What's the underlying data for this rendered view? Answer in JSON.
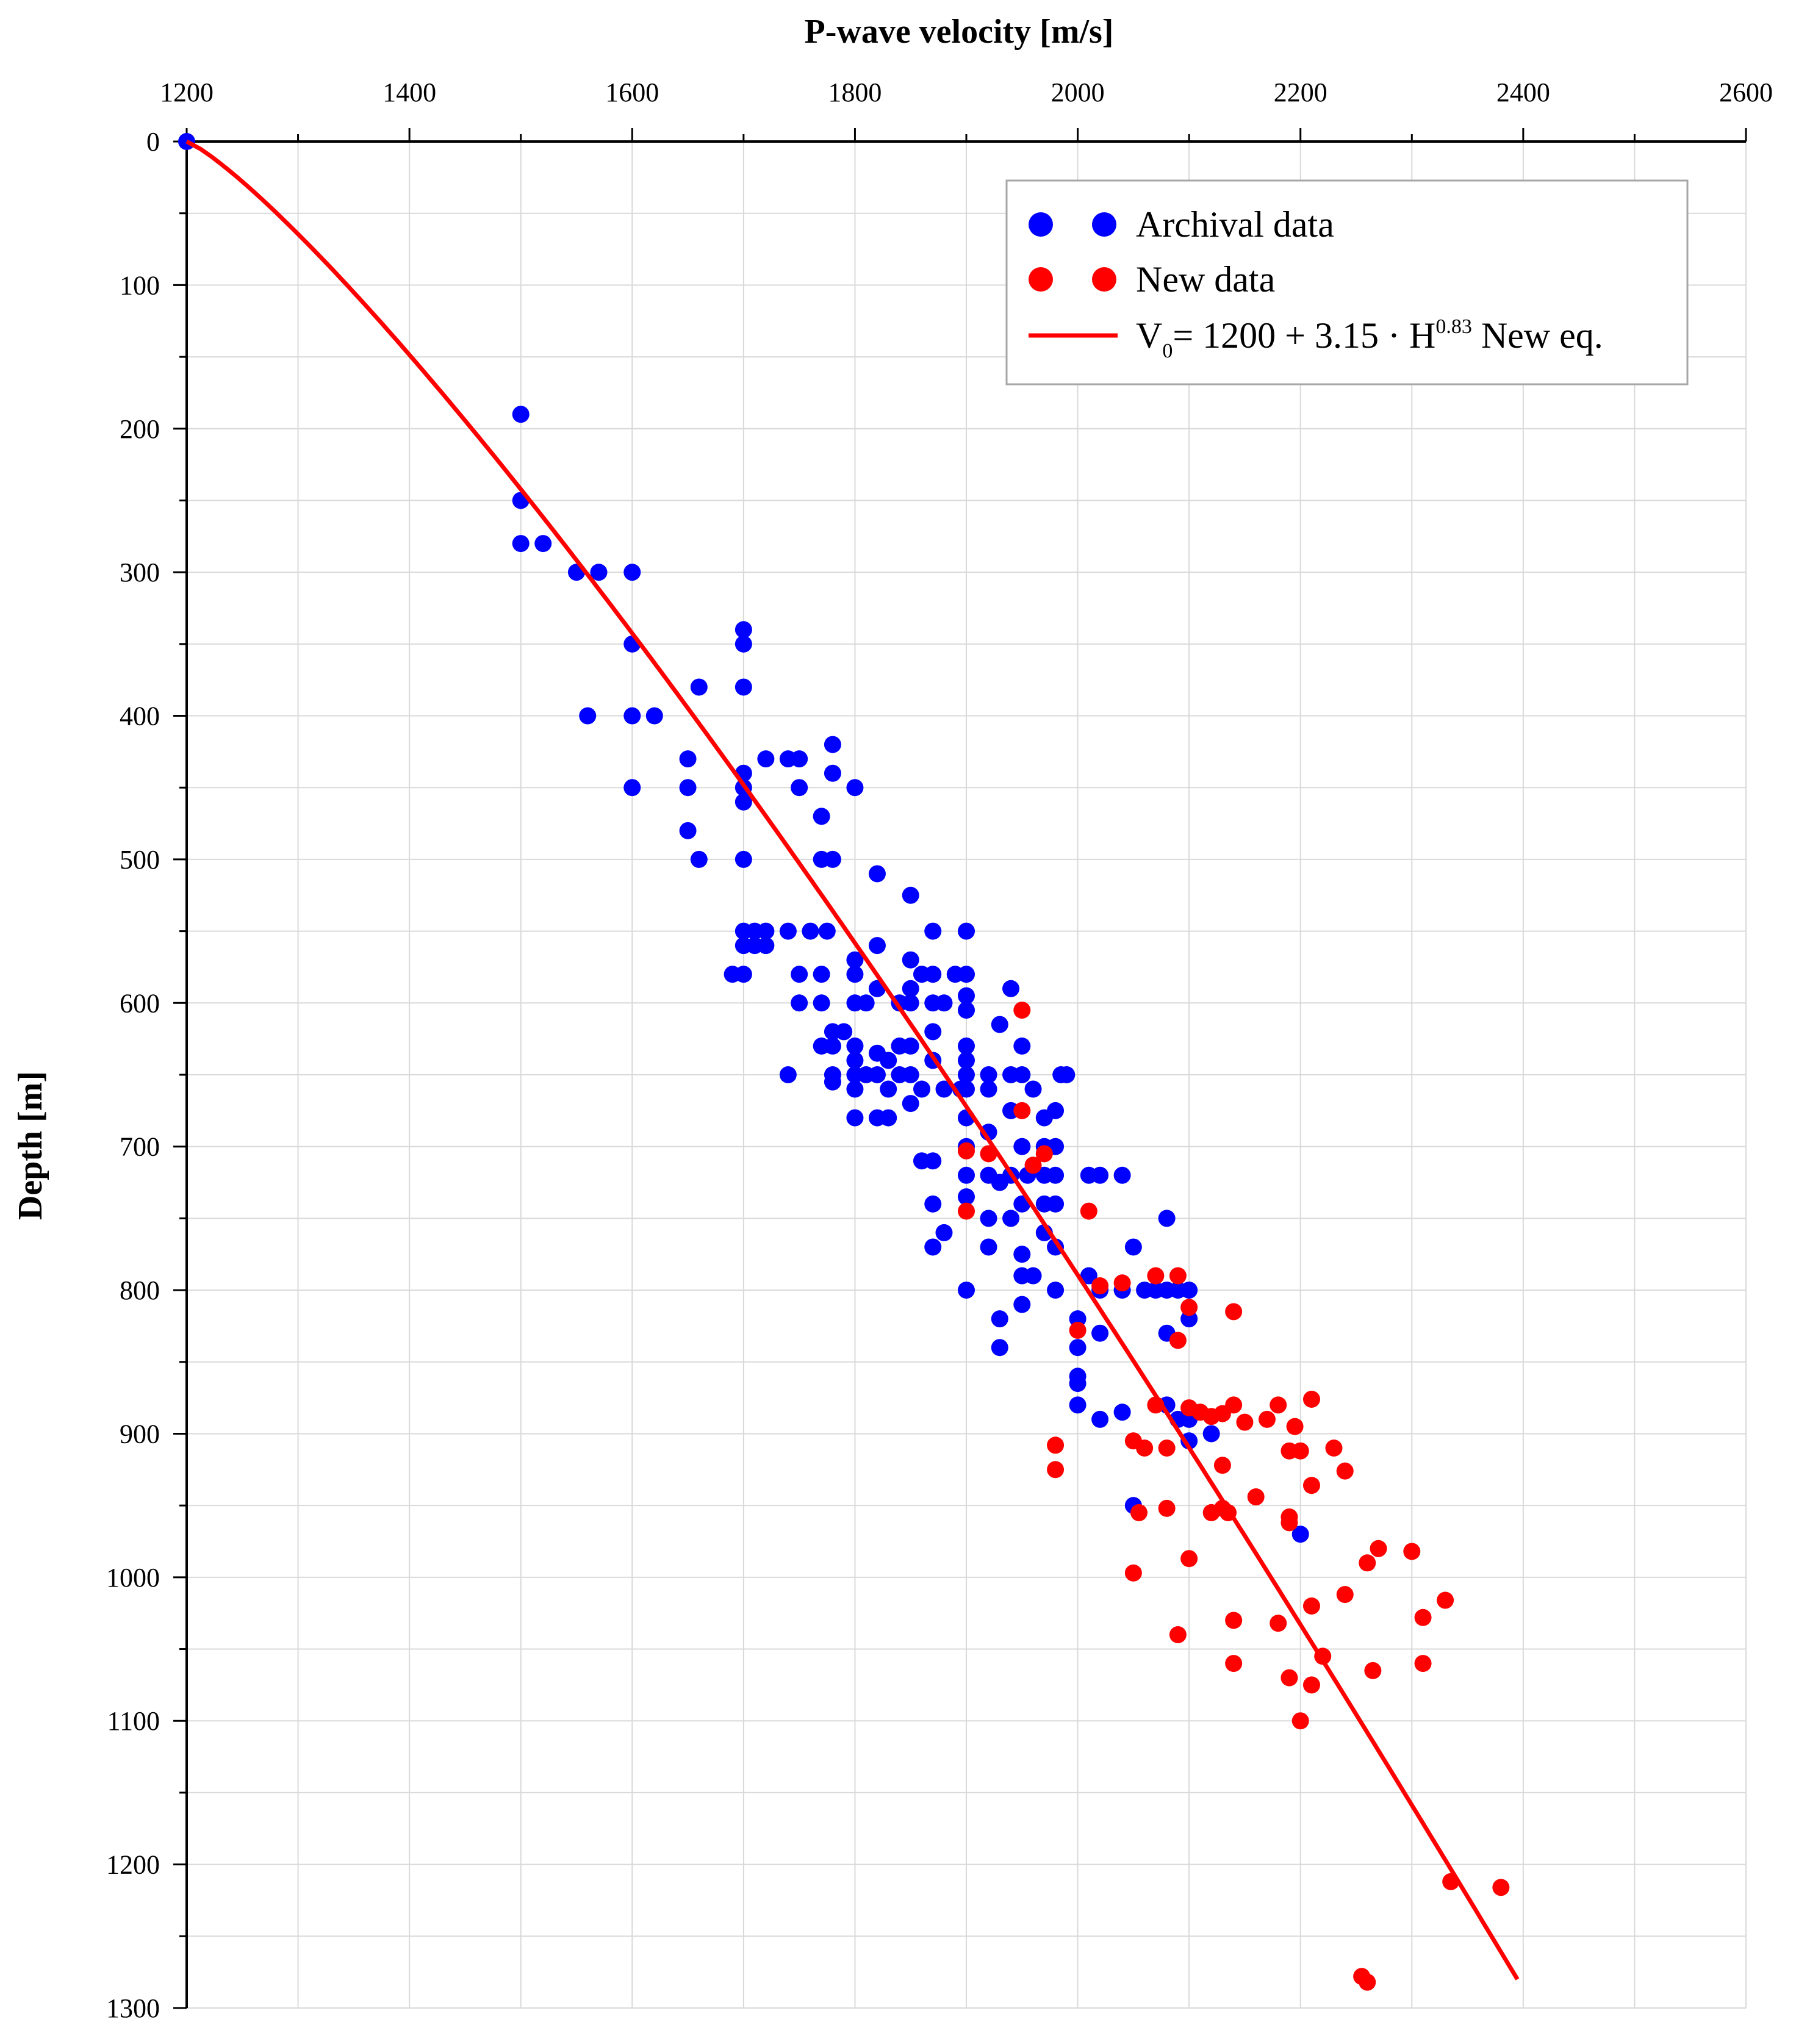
{
  "chart_data": {
    "type": "scatter",
    "title": "P-wave velocity [m/s]",
    "xlabel": "P-wave velocity [m/s]",
    "ylabel": "Depth [m]",
    "xlim": [
      1200,
      2600
    ],
    "ylim": [
      0,
      1300
    ],
    "x_axis_position": "top",
    "y_axis_inverted": true,
    "grid": true,
    "legend_position": "top-right",
    "xticks": [
      1200,
      1400,
      1600,
      1800,
      2000,
      2200,
      2400,
      2600
    ],
    "yticks": [
      0,
      100,
      200,
      300,
      400,
      500,
      600,
      700,
      800,
      900,
      1000,
      1100,
      1200,
      1300
    ],
    "series": [
      {
        "name": "Archival data",
        "kind": "scatter",
        "color": "#0000ff",
        "points": [
          [
            1200,
            0
          ],
          [
            1500,
            190
          ],
          [
            1500,
            250
          ],
          [
            1500,
            280
          ],
          [
            1520,
            280
          ],
          [
            1550,
            300
          ],
          [
            1570,
            300
          ],
          [
            1600,
            300
          ],
          [
            1600,
            350
          ],
          [
            1560,
            400
          ],
          [
            1600,
            400
          ],
          [
            1620,
            400
          ],
          [
            1660,
            380
          ],
          [
            1700,
            340
          ],
          [
            1700,
            350
          ],
          [
            1700,
            380
          ],
          [
            1650,
            430
          ],
          [
            1650,
            450
          ],
          [
            1600,
            450
          ],
          [
            1650,
            480
          ],
          [
            1660,
            500
          ],
          [
            1700,
            440
          ],
          [
            1700,
            450
          ],
          [
            1700,
            460
          ],
          [
            1720,
            430
          ],
          [
            1740,
            430
          ],
          [
            1750,
            430
          ],
          [
            1750,
            450
          ],
          [
            1780,
            420
          ],
          [
            1780,
            440
          ],
          [
            1800,
            450
          ],
          [
            1770,
            470
          ],
          [
            1700,
            500
          ],
          [
            1770,
            500
          ],
          [
            1780,
            500
          ],
          [
            1700,
            550
          ],
          [
            1710,
            550
          ],
          [
            1720,
            550
          ],
          [
            1740,
            550
          ],
          [
            1760,
            550
          ],
          [
            1775,
            550
          ],
          [
            1690,
            580
          ],
          [
            1700,
            580
          ],
          [
            1700,
            560
          ],
          [
            1710,
            560
          ],
          [
            1720,
            560
          ],
          [
            1750,
            580
          ],
          [
            1770,
            580
          ],
          [
            1750,
            600
          ],
          [
            1770,
            600
          ],
          [
            1780,
            620
          ],
          [
            1790,
            620
          ],
          [
            1770,
            630
          ],
          [
            1780,
            630
          ],
          [
            1800,
            570
          ],
          [
            1800,
            580
          ],
          [
            1800,
            600
          ],
          [
            1810,
            600
          ],
          [
            1800,
            630
          ],
          [
            1800,
            640
          ],
          [
            1780,
            650
          ],
          [
            1780,
            655
          ],
          [
            1740,
            650
          ],
          [
            1800,
            650
          ],
          [
            1810,
            650
          ],
          [
            1800,
            660
          ],
          [
            1800,
            680
          ],
          [
            1820,
            510
          ],
          [
            1820,
            560
          ],
          [
            1820,
            590
          ],
          [
            1820,
            635
          ],
          [
            1820,
            650
          ],
          [
            1820,
            680
          ],
          [
            1830,
            640
          ],
          [
            1830,
            680
          ],
          [
            1830,
            660
          ],
          [
            1840,
            600
          ],
          [
            1840,
            630
          ],
          [
            1840,
            650
          ],
          [
            1850,
            525
          ],
          [
            1850,
            570
          ],
          [
            1850,
            590
          ],
          [
            1850,
            600
          ],
          [
            1850,
            630
          ],
          [
            1850,
            650
          ],
          [
            1850,
            670
          ],
          [
            1860,
            580
          ],
          [
            1860,
            660
          ],
          [
            1860,
            710
          ],
          [
            1870,
            550
          ],
          [
            1870,
            580
          ],
          [
            1870,
            600
          ],
          [
            1870,
            620
          ],
          [
            1870,
            640
          ],
          [
            1870,
            710
          ],
          [
            1870,
            740
          ],
          [
            1870,
            770
          ],
          [
            1880,
            600
          ],
          [
            1880,
            660
          ],
          [
            1880,
            760
          ],
          [
            1890,
            580
          ],
          [
            1895,
            660
          ],
          [
            1900,
            550
          ],
          [
            1900,
            580
          ],
          [
            1900,
            595
          ],
          [
            1900,
            605
          ],
          [
            1900,
            630
          ],
          [
            1900,
            640
          ],
          [
            1900,
            650
          ],
          [
            1900,
            660
          ],
          [
            1900,
            680
          ],
          [
            1900,
            700
          ],
          [
            1900,
            720
          ],
          [
            1900,
            735
          ],
          [
            1900,
            800
          ],
          [
            1920,
            650
          ],
          [
            1920,
            660
          ],
          [
            1920,
            690
          ],
          [
            1920,
            720
          ],
          [
            1920,
            750
          ],
          [
            1920,
            770
          ],
          [
            1930,
            615
          ],
          [
            1930,
            725
          ],
          [
            1930,
            820
          ],
          [
            1930,
            840
          ],
          [
            1940,
            590
          ],
          [
            1940,
            650
          ],
          [
            1940,
            675
          ],
          [
            1940,
            720
          ],
          [
            1940,
            750
          ],
          [
            1950,
            630
          ],
          [
            1950,
            650
          ],
          [
            1950,
            700
          ],
          [
            1950,
            740
          ],
          [
            1950,
            775
          ],
          [
            1950,
            790
          ],
          [
            1950,
            810
          ],
          [
            1955,
            720
          ],
          [
            1960,
            660
          ],
          [
            1960,
            790
          ],
          [
            1970,
            680
          ],
          [
            1970,
            700
          ],
          [
            1970,
            720
          ],
          [
            1970,
            740
          ],
          [
            1970,
            760
          ],
          [
            1980,
            675
          ],
          [
            1980,
            700
          ],
          [
            1980,
            720
          ],
          [
            1980,
            740
          ],
          [
            1980,
            770
          ],
          [
            1980,
            800
          ],
          [
            1990,
            650
          ],
          [
            1985,
            650
          ],
          [
            2000,
            820
          ],
          [
            2000,
            840
          ],
          [
            2000,
            860
          ],
          [
            2000,
            865
          ],
          [
            2000,
            880
          ],
          [
            2010,
            720
          ],
          [
            2010,
            790
          ],
          [
            2020,
            720
          ],
          [
            2020,
            800
          ],
          [
            2020,
            830
          ],
          [
            2020,
            890
          ],
          [
            2040,
            720
          ],
          [
            2040,
            800
          ],
          [
            2040,
            885
          ],
          [
            2050,
            770
          ],
          [
            2060,
            800
          ],
          [
            2070,
            800
          ],
          [
            2080,
            750
          ],
          [
            2080,
            800
          ],
          [
            2080,
            830
          ],
          [
            2080,
            880
          ],
          [
            2090,
            800
          ],
          [
            2100,
            800
          ],
          [
            2100,
            820
          ],
          [
            2090,
            890
          ],
          [
            2100,
            890
          ],
          [
            2100,
            905
          ],
          [
            2120,
            900
          ],
          [
            2050,
            950
          ],
          [
            2200,
            970
          ]
        ]
      },
      {
        "name": "New data",
        "kind": "scatter",
        "color": "#ff0000",
        "points": [
          [
            1950,
            605
          ],
          [
            1950,
            675
          ],
          [
            1900,
            703
          ],
          [
            1920,
            705
          ],
          [
            1970,
            705
          ],
          [
            1960,
            713
          ],
          [
            1900,
            745
          ],
          [
            2010,
            745
          ],
          [
            2000,
            828
          ],
          [
            2020,
            797
          ],
          [
            2040,
            795
          ],
          [
            2070,
            790
          ],
          [
            2090,
            790
          ],
          [
            2100,
            812
          ],
          [
            2090,
            835
          ],
          [
            2140,
            815
          ],
          [
            2070,
            880
          ],
          [
            2100,
            882
          ],
          [
            2110,
            885
          ],
          [
            2120,
            888
          ],
          [
            2130,
            886
          ],
          [
            2140,
            880
          ],
          [
            2150,
            892
          ],
          [
            2170,
            890
          ],
          [
            2180,
            880
          ],
          [
            2210,
            876
          ],
          [
            2190,
            958
          ],
          [
            1980,
            908
          ],
          [
            1980,
            925
          ],
          [
            2050,
            905
          ],
          [
            2060,
            910
          ],
          [
            2080,
            910
          ],
          [
            2130,
            922
          ],
          [
            2200,
            912
          ],
          [
            2190,
            912
          ],
          [
            2195,
            895
          ],
          [
            2230,
            910
          ],
          [
            2240,
            926
          ],
          [
            2210,
            936
          ],
          [
            2160,
            944
          ],
          [
            2055,
            955
          ],
          [
            2080,
            952
          ],
          [
            2120,
            955
          ],
          [
            2130,
            952
          ],
          [
            2135,
            955
          ],
          [
            2190,
            962
          ],
          [
            2100,
            987
          ],
          [
            2050,
            997
          ],
          [
            2260,
            990
          ],
          [
            2270,
            980
          ],
          [
            2300,
            982
          ],
          [
            2240,
            1012
          ],
          [
            2330,
            1016
          ],
          [
            2210,
            1020
          ],
          [
            2310,
            1028
          ],
          [
            2140,
            1030
          ],
          [
            2180,
            1032
          ],
          [
            2090,
            1040
          ],
          [
            2220,
            1055
          ],
          [
            2140,
            1060
          ],
          [
            2310,
            1060
          ],
          [
            2265,
            1065
          ],
          [
            2190,
            1070
          ],
          [
            2210,
            1075
          ],
          [
            2200,
            1100
          ],
          [
            2335,
            1212
          ],
          [
            2380,
            1216
          ],
          [
            2255,
            1278
          ],
          [
            2260,
            1282
          ]
        ]
      },
      {
        "name": "V0 = 1200 + 3.15 · H0.83 New eq.",
        "kind": "line",
        "color": "#ff0000",
        "equation": {
          "a": 1200,
          "b": 3.15,
          "exponent": 0.83
        },
        "depth_range": [
          0,
          1280
        ]
      }
    ]
  },
  "legend": {
    "items": [
      {
        "label": "Archival data",
        "color": "#0000ff",
        "marker": "dot"
      },
      {
        "label": "New data",
        "color": "#ff0000",
        "marker": "dot"
      },
      {
        "label_main": "V",
        "label_sub": "0",
        "label_mid": "= 1200 + 3.15 · H",
        "label_sup": "0.83",
        "label_end": " New eq.",
        "color": "#ff0000",
        "marker": "line"
      }
    ]
  },
  "colors": {
    "archival": "#0000ff",
    "new_data": "#ff0000",
    "fit_line": "#ff0000",
    "grid": "#d9d9d9",
    "axis": "#000000"
  }
}
